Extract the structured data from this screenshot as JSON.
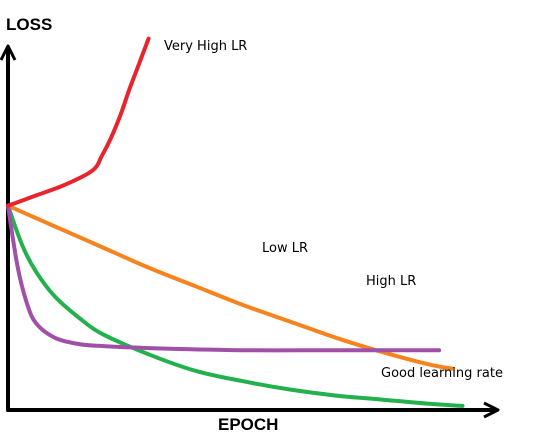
{
  "chart_data": {
    "type": "line",
    "title": "",
    "xlabel": "EPOCH",
    "ylabel": "LOSS",
    "x_ticks": "none",
    "y_ticks": "none",
    "grid": false,
    "legend": "inline labels next to curves",
    "series": [
      {
        "name": "Very High LR",
        "color": "#e8242c",
        "points": [
          [
            0.0,
            0.99
          ],
          [
            0.06,
            1.04
          ],
          [
            0.12,
            1.09
          ],
          [
            0.18,
            1.16
          ],
          [
            0.2,
            1.23
          ],
          [
            0.22,
            1.32
          ],
          [
            0.24,
            1.43
          ],
          [
            0.26,
            1.56
          ],
          [
            0.28,
            1.68
          ],
          [
            0.3,
            1.8
          ]
        ]
      },
      {
        "name": "Low LR",
        "color": "#f7831e",
        "points": [
          [
            0.0,
            0.99
          ],
          [
            0.1,
            0.89
          ],
          [
            0.2,
            0.79
          ],
          [
            0.3,
            0.69
          ],
          [
            0.4,
            0.6
          ],
          [
            0.5,
            0.51
          ],
          [
            0.6,
            0.43
          ],
          [
            0.7,
            0.35
          ],
          [
            0.8,
            0.28
          ],
          [
            0.9,
            0.22
          ],
          [
            0.95,
            0.2
          ]
        ]
      },
      {
        "name": "High LR",
        "color": "#a150a8",
        "points": [
          [
            0.0,
            0.99
          ],
          [
            0.02,
            0.7
          ],
          [
            0.04,
            0.52
          ],
          [
            0.06,
            0.42
          ],
          [
            0.1,
            0.35
          ],
          [
            0.15,
            0.32
          ],
          [
            0.2,
            0.31
          ],
          [
            0.3,
            0.3
          ],
          [
            0.5,
            0.29
          ],
          [
            0.7,
            0.29
          ],
          [
            0.92,
            0.29
          ]
        ]
      },
      {
        "name": "Good learning rate",
        "color": "#22b14c",
        "points": [
          [
            0.0,
            0.99
          ],
          [
            0.03,
            0.8
          ],
          [
            0.06,
            0.67
          ],
          [
            0.1,
            0.55
          ],
          [
            0.15,
            0.45
          ],
          [
            0.2,
            0.37
          ],
          [
            0.3,
            0.27
          ],
          [
            0.4,
            0.19
          ],
          [
            0.5,
            0.14
          ],
          [
            0.6,
            0.1
          ],
          [
            0.7,
            0.07
          ],
          [
            0.8,
            0.05
          ],
          [
            0.9,
            0.03
          ],
          [
            0.97,
            0.02
          ]
        ]
      }
    ],
    "xlim": [
      0,
      1.05
    ],
    "ylim": [
      0,
      1.9
    ],
    "annotations": [
      "Very High LR",
      "Low LR",
      "High LR",
      "Good learning rate"
    ]
  }
}
